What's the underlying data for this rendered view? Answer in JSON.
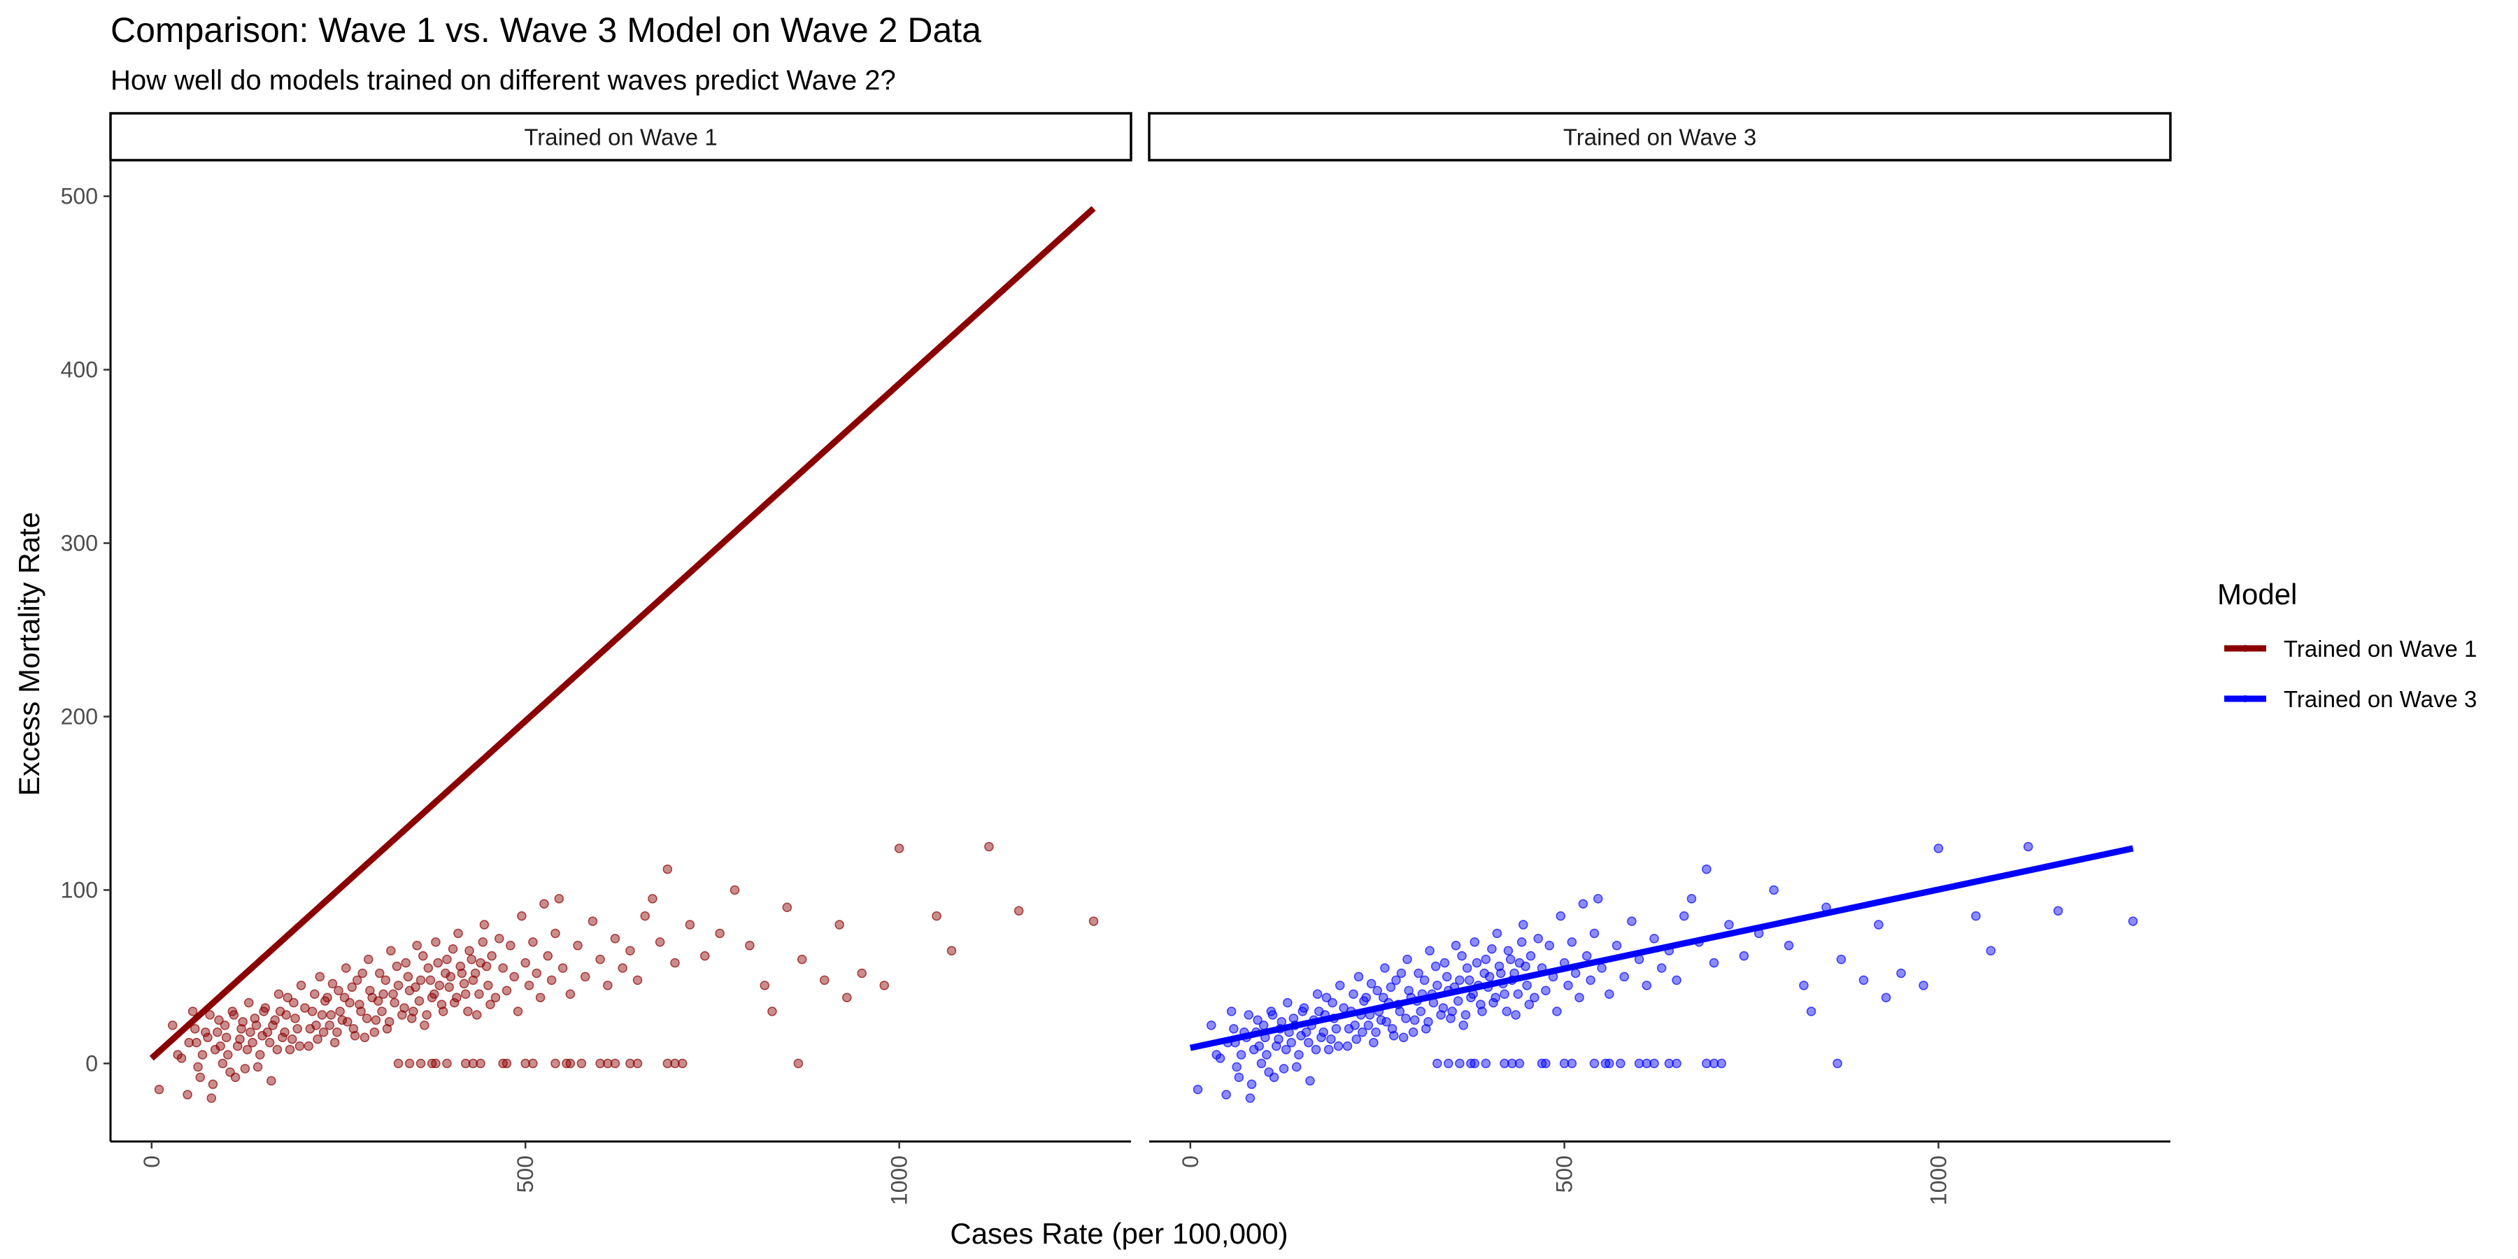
{
  "chart_data": {
    "type": "scatter",
    "title": "Comparison: Wave 1 vs. Wave 3 Model on Wave 2 Data",
    "subtitle": "How well do models trained on different waves predict Wave 2?",
    "xlabel": "Cases Rate (per 100,000)",
    "ylabel": "Excess Mortality Rate",
    "xlim": [
      -55,
      1310
    ],
    "ylim": [
      -45,
      520
    ],
    "x_ticks": [
      0,
      500,
      1000
    ],
    "y_ticks": [
      0,
      100,
      200,
      300,
      400,
      500
    ],
    "grid": false,
    "legend_position": "right",
    "legend_title": "Model",
    "panels": [
      {
        "strip": "Trained on Wave 1",
        "model": "Trained on Wave 1",
        "color": "#8B0000",
        "fit_line": [
          [
            0,
            3
          ],
          [
            1260,
            493
          ]
        ]
      },
      {
        "strip": "Trained on Wave 3",
        "model": "Trained on Wave 3",
        "color": "#0000FF",
        "fit_line": [
          [
            0,
            9
          ],
          [
            1260,
            124
          ]
        ]
      }
    ],
    "series": [
      {
        "name": "Trained on Wave 1",
        "color": "#8B0000"
      },
      {
        "name": "Trained on Wave 3",
        "color": "#0000FF"
      }
    ],
    "points_description": "Same Wave 2 observations shown in both panels",
    "points": [
      [
        10,
        -15
      ],
      [
        28,
        22
      ],
      [
        35,
        5
      ],
      [
        48,
        -18
      ],
      [
        55,
        30
      ],
      [
        60,
        12
      ],
      [
        65,
        -8
      ],
      [
        72,
        18
      ],
      [
        80,
        -20
      ],
      [
        85,
        8
      ],
      [
        90,
        25
      ],
      [
        95,
        0
      ],
      [
        100,
        15
      ],
      [
        105,
        -5
      ],
      [
        110,
        28
      ],
      [
        115,
        10
      ],
      [
        120,
        20
      ],
      [
        125,
        -3
      ],
      [
        130,
        35
      ],
      [
        135,
        12
      ],
      [
        140,
        22
      ],
      [
        145,
        5
      ],
      [
        150,
        30
      ],
      [
        155,
        18
      ],
      [
        160,
        -10
      ],
      [
        165,
        25
      ],
      [
        170,
        40
      ],
      [
        175,
        15
      ],
      [
        180,
        28
      ],
      [
        185,
        8
      ],
      [
        190,
        35
      ],
      [
        195,
        20
      ],
      [
        200,
        45
      ],
      [
        210,
        10
      ],
      [
        215,
        30
      ],
      [
        220,
        22
      ],
      [
        225,
        50
      ],
      [
        230,
        18
      ],
      [
        235,
        38
      ],
      [
        240,
        28
      ],
      [
        245,
        12
      ],
      [
        250,
        42
      ],
      [
        255,
        25
      ],
      [
        260,
        55
      ],
      [
        265,
        35
      ],
      [
        270,
        20
      ],
      [
        275,
        48
      ],
      [
        280,
        30
      ],
      [
        285,
        15
      ],
      [
        290,
        60
      ],
      [
        295,
        38
      ],
      [
        300,
        25
      ],
      [
        305,
        52
      ],
      [
        310,
        40
      ],
      [
        315,
        20
      ],
      [
        320,
        65
      ],
      [
        325,
        35
      ],
      [
        330,
        45
      ],
      [
        335,
        28
      ],
      [
        340,
        58
      ],
      [
        345,
        42
      ],
      [
        350,
        30
      ],
      [
        355,
        68
      ],
      [
        360,
        48
      ],
      [
        365,
        22
      ],
      [
        370,
        55
      ],
      [
        375,
        38
      ],
      [
        380,
        70
      ],
      [
        385,
        45
      ],
      [
        390,
        30
      ],
      [
        395,
        60
      ],
      [
        400,
        50
      ],
      [
        405,
        35
      ],
      [
        410,
        75
      ],
      [
        415,
        52
      ],
      [
        420,
        40
      ],
      [
        425,
        65
      ],
      [
        430,
        48
      ],
      [
        435,
        28
      ],
      [
        440,
        58
      ],
      [
        445,
        80
      ],
      [
        450,
        45
      ],
      [
        455,
        62
      ],
      [
        460,
        38
      ],
      [
        465,
        72
      ],
      [
        470,
        55
      ],
      [
        475,
        42
      ],
      [
        480,
        68
      ],
      [
        485,
        50
      ],
      [
        490,
        30
      ],
      [
        495,
        85
      ],
      [
        500,
        58
      ],
      [
        505,
        45
      ],
      [
        510,
        70
      ],
      [
        515,
        52
      ],
      [
        520,
        38
      ],
      [
        525,
        92
      ],
      [
        530,
        62
      ],
      [
        535,
        48
      ],
      [
        540,
        75
      ],
      [
        545,
        95
      ],
      [
        550,
        55
      ],
      [
        560,
        40
      ],
      [
        570,
        68
      ],
      [
        580,
        50
      ],
      [
        590,
        82
      ],
      [
        600,
        60
      ],
      [
        610,
        45
      ],
      [
        620,
        72
      ],
      [
        630,
        55
      ],
      [
        640,
        65
      ],
      [
        650,
        48
      ],
      [
        660,
        85
      ],
      [
        670,
        95
      ],
      [
        680,
        70
      ],
      [
        690,
        112
      ],
      [
        700,
        58
      ],
      [
        720,
        80
      ],
      [
        740,
        62
      ],
      [
        760,
        75
      ],
      [
        780,
        100
      ],
      [
        800,
        68
      ],
      [
        820,
        45
      ],
      [
        830,
        30
      ],
      [
        850,
        90
      ],
      [
        870,
        60
      ],
      [
        900,
        48
      ],
      [
        920,
        80
      ],
      [
        930,
        38
      ],
      [
        950,
        52
      ],
      [
        980,
        45
      ],
      [
        1000,
        124
      ],
      [
        1050,
        85
      ],
      [
        1070,
        65
      ],
      [
        1120,
        125
      ],
      [
        1160,
        88
      ],
      [
        1260,
        82
      ],
      [
        330,
        0
      ],
      [
        345,
        0
      ],
      [
        360,
        0
      ],
      [
        375,
        0
      ],
      [
        380,
        0
      ],
      [
        395,
        0
      ],
      [
        420,
        0
      ],
      [
        430,
        0
      ],
      [
        440,
        0
      ],
      [
        470,
        0
      ],
      [
        475,
        0
      ],
      [
        500,
        0
      ],
      [
        510,
        0
      ],
      [
        540,
        0
      ],
      [
        555,
        0
      ],
      [
        560,
        0
      ],
      [
        575,
        0
      ],
      [
        600,
        0
      ],
      [
        610,
        0
      ],
      [
        620,
        0
      ],
      [
        640,
        0
      ],
      [
        650,
        0
      ],
      [
        690,
        0
      ],
      [
        700,
        0
      ],
      [
        710,
        0
      ],
      [
        865,
        0
      ],
      [
        40,
        3
      ],
      [
        50,
        12
      ],
      [
        58,
        20
      ],
      [
        62,
        -2
      ],
      [
        68,
        5
      ],
      [
        75,
        15
      ],
      [
        78,
        28
      ],
      [
        82,
        -12
      ],
      [
        88,
        18
      ],
      [
        92,
        10
      ],
      [
        98,
        22
      ],
      [
        102,
        5
      ],
      [
        108,
        30
      ],
      [
        112,
        -8
      ],
      [
        118,
        14
      ],
      [
        122,
        24
      ],
      [
        128,
        8
      ],
      [
        132,
        18
      ],
      [
        138,
        26
      ],
      [
        142,
        -2
      ],
      [
        148,
        16
      ],
      [
        152,
        32
      ],
      [
        158,
        12
      ],
      [
        162,
        22
      ],
      [
        168,
        8
      ],
      [
        172,
        30
      ],
      [
        178,
        18
      ],
      [
        182,
        38
      ],
      [
        188,
        14
      ],
      [
        192,
        26
      ],
      [
        198,
        10
      ],
      [
        205,
        32
      ],
      [
        212,
        20
      ],
      [
        218,
        40
      ],
      [
        222,
        14
      ],
      [
        228,
        28
      ],
      [
        232,
        36
      ],
      [
        238,
        22
      ],
      [
        242,
        46
      ],
      [
        248,
        18
      ],
      [
        252,
        30
      ],
      [
        258,
        38
      ],
      [
        262,
        24
      ],
      [
        268,
        44
      ],
      [
        272,
        16
      ],
      [
        278,
        34
      ],
      [
        282,
        52
      ],
      [
        288,
        26
      ],
      [
        292,
        42
      ],
      [
        298,
        18
      ],
      [
        303,
        36
      ],
      [
        308,
        30
      ],
      [
        313,
        48
      ],
      [
        318,
        24
      ],
      [
        323,
        40
      ],
      [
        328,
        56
      ],
      [
        338,
        32
      ],
      [
        343,
        50
      ],
      [
        348,
        26
      ],
      [
        353,
        44
      ],
      [
        358,
        36
      ],
      [
        363,
        62
      ],
      [
        368,
        28
      ],
      [
        373,
        48
      ],
      [
        378,
        40
      ],
      [
        383,
        58
      ],
      [
        388,
        34
      ],
      [
        393,
        52
      ],
      [
        398,
        44
      ],
      [
        403,
        66
      ],
      [
        408,
        38
      ],
      [
        413,
        56
      ],
      [
        418,
        46
      ],
      [
        423,
        30
      ],
      [
        428,
        60
      ],
      [
        433,
        52
      ],
      [
        438,
        40
      ],
      [
        443,
        70
      ],
      [
        448,
        56
      ],
      [
        453,
        34
      ]
    ]
  }
}
